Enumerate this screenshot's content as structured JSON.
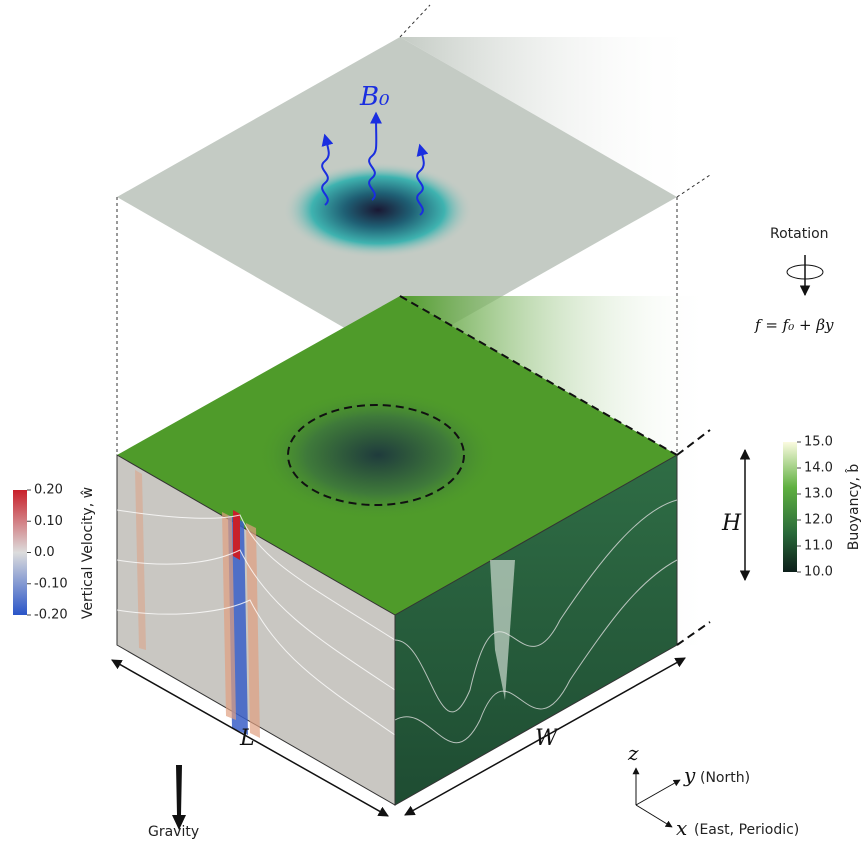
{
  "labels": {
    "b0": "B₀",
    "rotation": "Rotation",
    "coriolis": "f = f₀ + βy",
    "height": "H",
    "length": "L",
    "width": "W",
    "gravity": "Gravity"
  },
  "axes": {
    "z": "z",
    "y": "y",
    "y_note": "(North)",
    "x": "x",
    "x_note": "(East, Periodic)"
  },
  "velocity_colorbar": {
    "title": "Vertical Velocity, ŵ",
    "ticks": [
      "0.20",
      "0.10",
      "0.0",
      "-0.10",
      "-0.20"
    ]
  },
  "buoyancy_colorbar": {
    "title": "Buoyancy, b̂",
    "ticks": [
      "15.0",
      "14.0",
      "13.0",
      "12.0",
      "11.0",
      "10.0"
    ]
  }
}
